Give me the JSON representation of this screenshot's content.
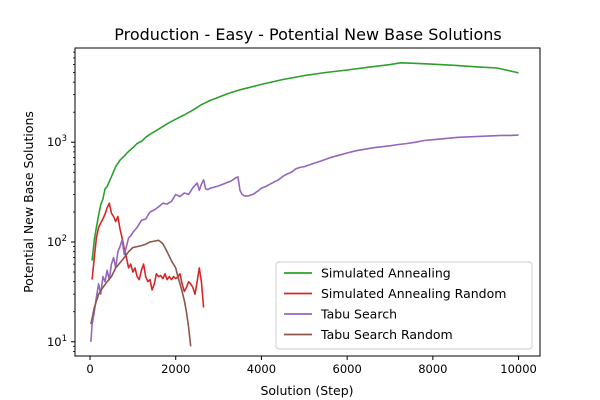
{
  "chart_data": {
    "type": "line",
    "title": "Production - Easy - Potential New Base Solutions",
    "xlabel": "Solution (Step)",
    "ylabel": "Potential New Base Solutions",
    "xlim": [
      -350,
      10500
    ],
    "ylim": [
      7.2,
      8800
    ],
    "yscale": "log",
    "grid": false,
    "legend_position": "lower right",
    "x_ticks": [
      {
        "value": 0,
        "label": "0"
      },
      {
        "value": 2000,
        "label": "2000"
      },
      {
        "value": 4000,
        "label": "4000"
      },
      {
        "value": 6000,
        "label": "6000"
      },
      {
        "value": 8000,
        "label": "8000"
      },
      {
        "value": 10000,
        "label": "10000"
      }
    ],
    "y_ticks": [
      {
        "value": 10,
        "base": "10",
        "exp": "1"
      },
      {
        "value": 100,
        "base": "10",
        "exp": "2"
      },
      {
        "value": 1000,
        "base": "10",
        "exp": "3"
      }
    ],
    "series": [
      {
        "name": "Simulated Annealing",
        "color": "#2ca02c",
        "points": [
          [
            50,
            65
          ],
          [
            100,
            105
          ],
          [
            150,
            140
          ],
          [
            200,
            185
          ],
          [
            250,
            235
          ],
          [
            300,
            270
          ],
          [
            350,
            340
          ],
          [
            400,
            360
          ],
          [
            500,
            450
          ],
          [
            600,
            570
          ],
          [
            700,
            660
          ],
          [
            800,
            730
          ],
          [
            900,
            810
          ],
          [
            1000,
            880
          ],
          [
            1100,
            970
          ],
          [
            1200,
            1020
          ],
          [
            1300,
            1120
          ],
          [
            1400,
            1200
          ],
          [
            1600,
            1350
          ],
          [
            1800,
            1530
          ],
          [
            2000,
            1700
          ],
          [
            2200,
            1880
          ],
          [
            2400,
            2100
          ],
          [
            2600,
            2380
          ],
          [
            2800,
            2620
          ],
          [
            3000,
            2830
          ],
          [
            3200,
            3050
          ],
          [
            3500,
            3350
          ],
          [
            4000,
            3800
          ],
          [
            4500,
            4250
          ],
          [
            5000,
            4650
          ],
          [
            5500,
            5000
          ],
          [
            6000,
            5300
          ],
          [
            6500,
            5650
          ],
          [
            7000,
            6000
          ],
          [
            7250,
            6250
          ],
          [
            7500,
            6200
          ],
          [
            8000,
            6050
          ],
          [
            8500,
            5900
          ],
          [
            9000,
            5700
          ],
          [
            9500,
            5550
          ],
          [
            10000,
            4950
          ]
        ]
      },
      {
        "name": "Simulated Annealing Random",
        "color": "#d62728",
        "points": [
          [
            50,
            42
          ],
          [
            100,
            70
          ],
          [
            150,
            110
          ],
          [
            200,
            140
          ],
          [
            250,
            155
          ],
          [
            300,
            170
          ],
          [
            350,
            190
          ],
          [
            400,
            220
          ],
          [
            450,
            245
          ],
          [
            500,
            195
          ],
          [
            550,
            180
          ],
          [
            600,
            160
          ],
          [
            650,
            180
          ],
          [
            700,
            135
          ],
          [
            750,
            110
          ],
          [
            800,
            85
          ],
          [
            850,
            70
          ],
          [
            900,
            55
          ],
          [
            950,
            60
          ],
          [
            1000,
            50
          ],
          [
            1050,
            55
          ],
          [
            1100,
            45
          ],
          [
            1150,
            42
          ],
          [
            1200,
            52
          ],
          [
            1250,
            60
          ],
          [
            1300,
            45
          ],
          [
            1350,
            40
          ],
          [
            1400,
            42
          ],
          [
            1450,
            33
          ],
          [
            1500,
            38
          ],
          [
            1550,
            48
          ],
          [
            1600,
            45
          ],
          [
            1650,
            46
          ],
          [
            1700,
            43
          ],
          [
            1750,
            48
          ],
          [
            1800,
            42
          ],
          [
            1850,
            45
          ],
          [
            1900,
            42
          ],
          [
            1950,
            45
          ],
          [
            2000,
            43
          ],
          [
            2050,
            45
          ],
          [
            2100,
            48
          ],
          [
            2150,
            38
          ],
          [
            2200,
            32
          ],
          [
            2250,
            35
          ],
          [
            2300,
            40
          ],
          [
            2350,
            38
          ],
          [
            2400,
            35
          ],
          [
            2450,
            30
          ],
          [
            2500,
            40
          ],
          [
            2550,
            55
          ],
          [
            2600,
            40
          ],
          [
            2650,
            22
          ]
        ]
      },
      {
        "name": "Tabu Search",
        "color": "#9467bd",
        "points": [
          [
            20,
            10
          ],
          [
            50,
            15
          ],
          [
            100,
            20
          ],
          [
            150,
            28
          ],
          [
            200,
            38
          ],
          [
            250,
            30
          ],
          [
            300,
            45
          ],
          [
            350,
            40
          ],
          [
            400,
            52
          ],
          [
            450,
            42
          ],
          [
            500,
            60
          ],
          [
            550,
            70
          ],
          [
            600,
            55
          ],
          [
            650,
            80
          ],
          [
            700,
            90
          ],
          [
            750,
            105
          ],
          [
            800,
            75
          ],
          [
            850,
            90
          ],
          [
            900,
            110
          ],
          [
            950,
            115
          ],
          [
            1000,
            125
          ],
          [
            1100,
            140
          ],
          [
            1200,
            165
          ],
          [
            1300,
            170
          ],
          [
            1400,
            200
          ],
          [
            1500,
            210
          ],
          [
            1600,
            225
          ],
          [
            1700,
            245
          ],
          [
            1800,
            240
          ],
          [
            1900,
            255
          ],
          [
            2000,
            300
          ],
          [
            2100,
            285
          ],
          [
            2200,
            310
          ],
          [
            2300,
            300
          ],
          [
            2400,
            350
          ],
          [
            2500,
            390
          ],
          [
            2550,
            330
          ],
          [
            2600,
            380
          ],
          [
            2650,
            420
          ],
          [
            2700,
            340
          ],
          [
            2750,
            335
          ],
          [
            2800,
            345
          ],
          [
            2900,
            355
          ],
          [
            3000,
            365
          ],
          [
            3100,
            380
          ],
          [
            3200,
            395
          ],
          [
            3300,
            410
          ],
          [
            3400,
            440
          ],
          [
            3450,
            450
          ],
          [
            3500,
            330
          ],
          [
            3550,
            300
          ],
          [
            3600,
            290
          ],
          [
            3700,
            290
          ],
          [
            3800,
            300
          ],
          [
            3900,
            320
          ],
          [
            4000,
            345
          ],
          [
            4100,
            360
          ],
          [
            4200,
            380
          ],
          [
            4300,
            400
          ],
          [
            4400,
            420
          ],
          [
            4500,
            455
          ],
          [
            4600,
            480
          ],
          [
            4700,
            500
          ],
          [
            4800,
            540
          ],
          [
            4900,
            560
          ],
          [
            5000,
            570
          ],
          [
            5200,
            610
          ],
          [
            5400,
            650
          ],
          [
            5600,
            700
          ],
          [
            5800,
            740
          ],
          [
            6000,
            780
          ],
          [
            6200,
            820
          ],
          [
            6400,
            850
          ],
          [
            6600,
            880
          ],
          [
            6800,
            900
          ],
          [
            7000,
            920
          ],
          [
            7200,
            950
          ],
          [
            7400,
            970
          ],
          [
            7600,
            1000
          ],
          [
            7800,
            1040
          ],
          [
            8000,
            1060
          ],
          [
            8200,
            1080
          ],
          [
            8400,
            1100
          ],
          [
            8600,
            1120
          ],
          [
            8800,
            1130
          ],
          [
            9000,
            1140
          ],
          [
            9200,
            1150
          ],
          [
            9400,
            1160
          ],
          [
            9600,
            1170
          ],
          [
            9800,
            1170
          ],
          [
            10000,
            1180
          ]
        ]
      },
      {
        "name": "Tabu Search Random",
        "color": "#8c564b",
        "points": [
          [
            20,
            15
          ],
          [
            100,
            22
          ],
          [
            200,
            30
          ],
          [
            300,
            35
          ],
          [
            400,
            40
          ],
          [
            500,
            45
          ],
          [
            600,
            55
          ],
          [
            700,
            62
          ],
          [
            800,
            70
          ],
          [
            900,
            80
          ],
          [
            1000,
            88
          ],
          [
            1100,
            90
          ],
          [
            1200,
            92
          ],
          [
            1300,
            95
          ],
          [
            1400,
            100
          ],
          [
            1500,
            102
          ],
          [
            1600,
            104
          ],
          [
            1700,
            96
          ],
          [
            1800,
            80
          ],
          [
            1900,
            65
          ],
          [
            2000,
            55
          ],
          [
            2050,
            45
          ],
          [
            2100,
            38
          ],
          [
            2150,
            32
          ],
          [
            2200,
            26
          ],
          [
            2250,
            20
          ],
          [
            2300,
            14
          ],
          [
            2350,
            9
          ]
        ]
      }
    ]
  }
}
